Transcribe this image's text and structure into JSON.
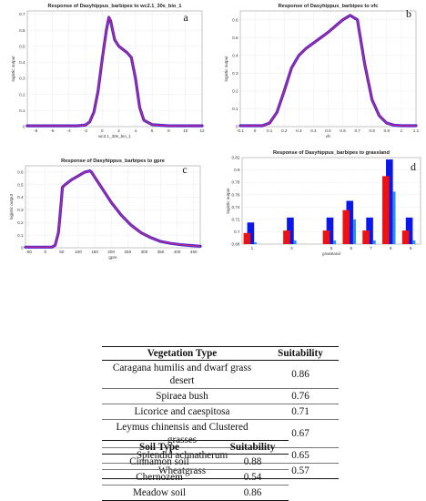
{
  "chart_data": [
    {
      "id": "a",
      "type": "line",
      "title": "Response of Dasyhippus_barbipes to wc2.1_30s_bio_1",
      "xlabel": "wc2.1_30s_bio_1",
      "ylabel": "logistic output",
      "panel_label": "a",
      "xlim": [
        -9,
        12
      ],
      "ylim": [
        0,
        0.72
      ],
      "xticks": [
        "-8",
        "-6",
        "-4",
        "-2",
        "0",
        "2",
        "4",
        "6",
        "8",
        "10",
        "12"
      ],
      "yticks": [
        "0",
        "0.1",
        "0.2",
        "0.3",
        "0.4",
        "0.5",
        "0.6",
        "0.7"
      ],
      "grid": true,
      "series": [
        {
          "x": [
            -9,
            -3,
            -2,
            -1.5,
            -1,
            -0.5,
            0,
            0.5,
            0.8,
            1,
            1.5,
            2,
            2.5,
            3,
            3.5,
            4,
            4.5,
            5,
            6,
            8,
            12
          ],
          "y": [
            0.005,
            0.005,
            0.01,
            0.03,
            0.09,
            0.22,
            0.42,
            0.6,
            0.68,
            0.66,
            0.54,
            0.5,
            0.48,
            0.46,
            0.43,
            0.3,
            0.12,
            0.04,
            0.012,
            0.005,
            0.005
          ]
        }
      ]
    },
    {
      "id": "b",
      "type": "line",
      "title": "Response of Dasyhippus_barbipes to vfc",
      "xlabel": "vfc",
      "ylabel": "logistic output",
      "panel_label": "b",
      "xlim": [
        -0.1,
        1.1
      ],
      "ylim": [
        0,
        0.65
      ],
      "xticks": [
        "-0.1",
        "0",
        "0.1",
        "0.2",
        "0.3",
        "0.4",
        "0.5",
        "0.6",
        "0.7",
        "0.8",
        "0.9",
        "1",
        "1.1"
      ],
      "yticks": [
        "0",
        "0.1",
        "0.2",
        "0.3",
        "0.4",
        "0.5",
        "0.6"
      ],
      "grid": true,
      "series": [
        {
          "x": [
            -0.1,
            0.05,
            0.1,
            0.15,
            0.2,
            0.25,
            0.3,
            0.35,
            0.4,
            0.5,
            0.6,
            0.65,
            0.7,
            0.72,
            0.75,
            0.8,
            0.85,
            0.9,
            0.95,
            1,
            1.1
          ],
          "y": [
            0.005,
            0.005,
            0.02,
            0.08,
            0.2,
            0.33,
            0.4,
            0.44,
            0.47,
            0.53,
            0.6,
            0.625,
            0.6,
            0.5,
            0.35,
            0.15,
            0.06,
            0.02,
            0.008,
            0.005,
            0.005
          ]
        }
      ]
    },
    {
      "id": "c",
      "type": "line",
      "title": "Response of Dasyhippus_barbipes to gpre",
      "xlabel": "gpre",
      "ylabel": "logistic output",
      "panel_label": "c",
      "xlim": [
        -60,
        470
      ],
      "ylim": [
        0,
        0.65
      ],
      "xticks": [
        "-50",
        "0",
        "50",
        "100",
        "150",
        "200",
        "250",
        "300",
        "350",
        "400",
        "450"
      ],
      "yticks": [
        "0",
        "0.1",
        "0.2",
        "0.3",
        "0.4",
        "0.5",
        "0.6"
      ],
      "grid": true,
      "series": [
        {
          "x": [
            -60,
            20,
            30,
            40,
            48,
            52,
            60,
            80,
            100,
            120,
            135,
            140,
            150,
            170,
            200,
            230,
            260,
            290,
            320,
            350,
            380,
            410,
            440,
            470
          ],
          "y": [
            0.005,
            0.005,
            0.02,
            0.12,
            0.35,
            0.48,
            0.5,
            0.54,
            0.57,
            0.6,
            0.61,
            0.6,
            0.56,
            0.48,
            0.36,
            0.26,
            0.18,
            0.12,
            0.08,
            0.05,
            0.035,
            0.025,
            0.018,
            0.012
          ]
        }
      ]
    },
    {
      "id": "d",
      "type": "bar",
      "title": "Response of Dasyhippus_barbipes to grassland",
      "xlabel": "grassland",
      "ylabel": "logistic output",
      "panel_label": "d",
      "ylim": [
        0.68,
        0.82
      ],
      "yticks": [
        "0.68",
        "0.7",
        "0.72",
        "0.74",
        "0.76",
        "0.78",
        "0.8",
        "0.82"
      ],
      "categories": [
        "1",
        "2",
        "3",
        "4",
        "5",
        "6",
        "7",
        "8",
        "9"
      ],
      "xtick_labels": [
        "1",
        "",
        "3",
        "",
        "5",
        "6",
        "7",
        "8",
        "9"
      ],
      "grid": true,
      "series": [
        {
          "color": "#0a16ee",
          "values": [
            0.715,
            null,
            0.723,
            null,
            0.723,
            0.75,
            0.723,
            0.817,
            0.723
          ]
        },
        {
          "color": "#ee1111",
          "values": [
            0.698,
            null,
            0.702,
            null,
            0.702,
            0.735,
            0.702,
            0.79,
            0.702
          ]
        },
        {
          "color": "#2f8fe8",
          "values": [
            0.683,
            null,
            0.686,
            null,
            0.686,
            0.72,
            0.686,
            0.765,
            0.686
          ]
        }
      ]
    }
  ],
  "veg_table": {
    "headers": [
      "Vegetation Type",
      "Suitability"
    ],
    "rows": [
      [
        "Caragana humilis and dwarf grass desert",
        "0.86"
      ],
      [
        "Spiraea bush",
        "0.76"
      ],
      [
        "Licorice and caespitosa",
        "0.71"
      ],
      [
        "Leymus chinensis and Clustered grasses",
        "0.67"
      ],
      [
        "Splendid achnatherum",
        "0.65"
      ],
      [
        "Wheatgrass",
        "0.57"
      ]
    ]
  },
  "soil_table": {
    "headers": [
      "Soil Type",
      "Suitability"
    ],
    "rows": [
      [
        "Cinnamon soil",
        "0.88"
      ],
      [
        "Chernozem",
        "0.54"
      ],
      [
        "Meadow soil",
        "0.86"
      ]
    ]
  }
}
